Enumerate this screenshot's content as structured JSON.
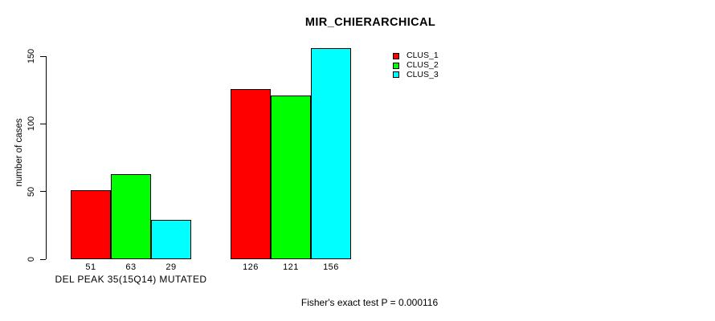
{
  "chart_data": {
    "type": "bar",
    "title": "MIR_CHIERARCHICAL",
    "ylabel": "number of cases",
    "xlabel": "",
    "categories": [
      "DEL PEAK 35(15Q14) MUTATED",
      ""
    ],
    "series": [
      {
        "name": "CLUS_1",
        "color": "#ff0000",
        "values": [
          51,
          126
        ]
      },
      {
        "name": "CLUS_2",
        "color": "#00ff00",
        "values": [
          63,
          121
        ]
      },
      {
        "name": "CLUS_3",
        "color": "#00ffff",
        "values": [
          29,
          156
        ]
      }
    ],
    "yticks": [
      0,
      50,
      100,
      150
    ],
    "ylim": [
      0,
      160
    ],
    "grid": false,
    "legend_position": "top-right",
    "annotation": "Fisher's exact test P = 0.000116"
  },
  "colors": {
    "background": "#ffffff",
    "axis": "#000000",
    "bar_border": "#000000"
  }
}
